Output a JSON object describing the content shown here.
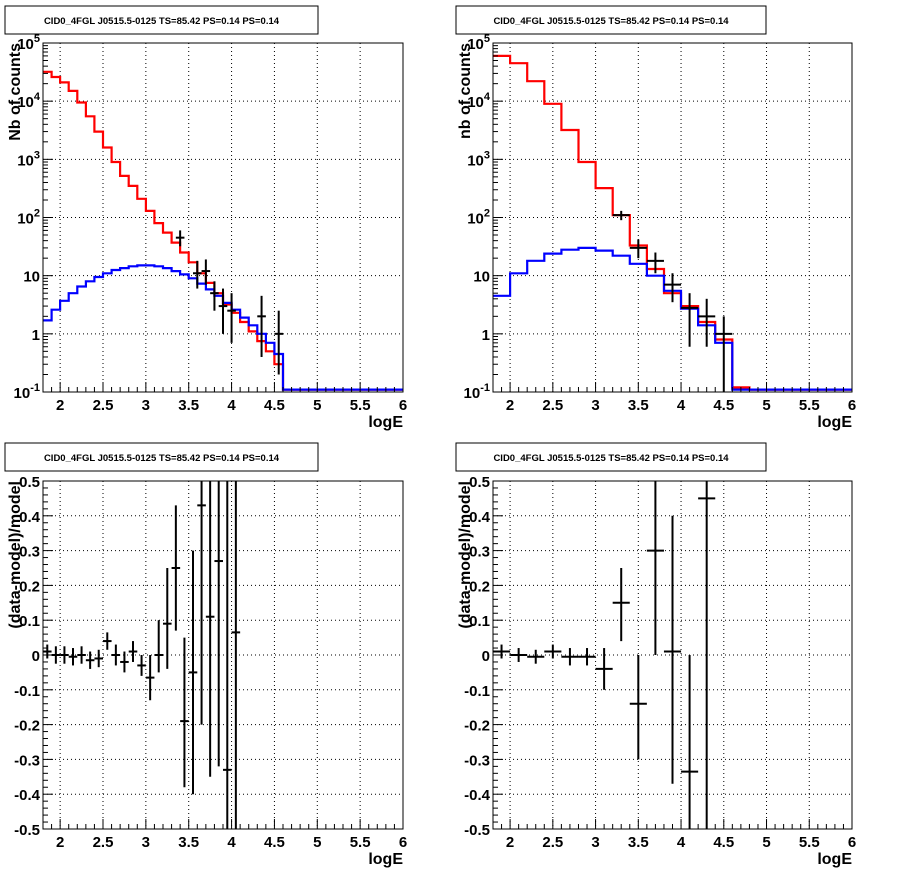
{
  "chart_data": [
    {
      "type": "line",
      "title": "CID0_4FGL J0515.5-0125 TS=85.42 PS=0.14 PS=0.14",
      "xlabel": "logE",
      "ylabel": "Nb of counts",
      "xlim": [
        1.8,
        6
      ],
      "ylim": [
        0.1,
        100000
      ],
      "yscale": "log",
      "xticks": [
        "2",
        "2.5",
        "3",
        "3.5",
        "4",
        "4.5",
        "5",
        "5.5",
        "6"
      ],
      "yticks": [
        "10^-1",
        "1",
        "10",
        "10^2",
        "10^3",
        "10^4",
        "10^5"
      ],
      "grid": true,
      "series": [
        {
          "kind": "step",
          "color": "#ff0000",
          "edges": [
            1.8,
            1.9,
            2.0,
            2.1,
            2.2,
            2.3,
            2.4,
            2.5,
            2.6,
            2.7,
            2.8,
            2.9,
            3.0,
            3.1,
            3.2,
            3.3,
            3.4,
            3.5,
            3.6,
            3.7,
            3.8,
            3.9,
            4.0,
            4.1,
            4.2,
            4.3,
            4.4,
            4.5,
            4.6,
            4.7,
            4.8,
            4.9,
            5.0,
            5.1,
            5.2,
            5.3,
            5.4,
            5.5,
            5.6,
            5.7,
            5.8,
            5.9,
            6.0
          ],
          "values": [
            32000,
            26000,
            21000,
            15000,
            9500,
            5500,
            3000,
            1600,
            900,
            520,
            350,
            210,
            130,
            80,
            55,
            37,
            25,
            17,
            11,
            7.5,
            5,
            3.2,
            2.3,
            1.6,
            1.1,
            0.75,
            0.5,
            0.3,
            0.11,
            0.11,
            0.11,
            0.11,
            0.11,
            0.11,
            0.11,
            0.11,
            0.11,
            0.11,
            0.11,
            0.11,
            0.11,
            0.11
          ]
        },
        {
          "kind": "step",
          "color": "#0000ff",
          "edges": [
            1.8,
            1.9,
            2.0,
            2.1,
            2.2,
            2.3,
            2.4,
            2.5,
            2.6,
            2.7,
            2.8,
            2.9,
            3.0,
            3.1,
            3.2,
            3.3,
            3.4,
            3.5,
            3.6,
            3.7,
            3.8,
            3.9,
            4.0,
            4.1,
            4.2,
            4.3,
            4.4,
            4.5,
            4.6,
            4.7,
            4.8,
            4.9,
            5.0,
            5.1,
            5.2,
            5.3,
            5.4,
            5.5,
            5.6,
            5.7,
            5.8,
            5.9,
            6.0
          ],
          "values": [
            1.7,
            2.6,
            3.7,
            5.0,
            6.5,
            8.0,
            9.5,
            11,
            12.5,
            13.5,
            14.5,
            15,
            15,
            14.5,
            13.5,
            12,
            10.5,
            9,
            7.3,
            5.8,
            4.5,
            3.4,
            2.6,
            1.9,
            1.4,
            1.0,
            0.7,
            0.45,
            0.11,
            0.11,
            0.11,
            0.11,
            0.11,
            0.11,
            0.11,
            0.11,
            0.11,
            0.11,
            0.11,
            0.11,
            0.11,
            0.11
          ]
        },
        {
          "kind": "points",
          "color": "#000000",
          "x": [
            3.4,
            3.6,
            3.7,
            3.8,
            3.9,
            4.0,
            4.35,
            4.55
          ],
          "y": [
            45,
            11,
            12,
            5,
            3,
            2.5,
            2.0,
            1.0
          ],
          "lo": [
            32,
            6,
            7,
            2.5,
            1,
            0.7,
            0.4,
            0.2
          ],
          "hi": [
            60,
            18,
            19,
            8,
            6,
            5,
            4.5,
            2.5
          ],
          "dx": 0.05
        }
      ]
    },
    {
      "type": "line",
      "title": "CID0_4FGL J0515.5-0125 TS=85.42 PS=0.14 PS=0.14",
      "xlabel": "logE",
      "ylabel": "nb of counts",
      "xlim": [
        1.8,
        6
      ],
      "ylim": [
        0.1,
        100000
      ],
      "yscale": "log",
      "xticks": [
        "2",
        "2.5",
        "3",
        "3.5",
        "4",
        "4.5",
        "5",
        "5.5",
        "6"
      ],
      "yticks": [
        "10^-1",
        "1",
        "10",
        "10^2",
        "10^3",
        "10^4",
        "10^5"
      ],
      "grid": true,
      "series": [
        {
          "kind": "step",
          "color": "#ff0000",
          "edges": [
            1.8,
            2.0,
            2.2,
            2.4,
            2.6,
            2.8,
            3.0,
            3.2,
            3.4,
            3.6,
            3.8,
            4.0,
            4.2,
            4.4,
            4.6,
            4.8,
            5.0,
            5.2,
            5.4,
            5.6,
            5.8,
            6.0
          ],
          "values": [
            60000,
            45000,
            22000,
            9000,
            3200,
            900,
            320,
            110,
            33,
            13,
            5,
            3,
            1.6,
            0.8,
            0.12,
            0.11,
            0.11,
            0.11,
            0.11,
            0.11,
            0.11
          ]
        },
        {
          "kind": "step",
          "color": "#0000ff",
          "edges": [
            1.8,
            2.0,
            2.2,
            2.4,
            2.6,
            2.8,
            3.0,
            3.2,
            3.4,
            3.6,
            3.8,
            4.0,
            4.2,
            4.4,
            4.6,
            4.8,
            5.0,
            5.2,
            5.4,
            5.6,
            5.8,
            6.0
          ],
          "values": [
            4.5,
            11,
            18,
            24,
            28,
            30,
            27,
            22,
            16,
            10,
            5.5,
            2.7,
            1.4,
            0.7,
            0.11,
            0.11,
            0.11,
            0.11,
            0.11,
            0.11,
            0.11
          ]
        },
        {
          "kind": "points",
          "color": "#000000",
          "x": [
            3.3,
            3.5,
            3.7,
            3.9,
            4.1,
            4.3,
            4.5
          ],
          "y": [
            110,
            30,
            18,
            7,
            2.8,
            2.0,
            1.0
          ],
          "lo": [
            90,
            20,
            11,
            3.5,
            0.6,
            0.6,
            0.1
          ],
          "hi": [
            130,
            42,
            25,
            11,
            5,
            4,
            2.0
          ],
          "dx": 0.1
        }
      ]
    },
    {
      "type": "scatter",
      "title": "CID0_4FGL J0515.5-0125 TS=85.42 PS=0.14 PS=0.14",
      "xlabel": "logE",
      "ylabel": "(data-model)/model",
      "xlim": [
        1.8,
        6
      ],
      "ylim": [
        -0.5,
        0.5
      ],
      "xticks": [
        "2",
        "2.5",
        "3",
        "3.5",
        "4",
        "4.5",
        "5",
        "5.5",
        "6"
      ],
      "yticks": [
        "-0.5",
        "-0.4",
        "-0.3",
        "-0.2",
        "-0.1",
        "0",
        "0.1",
        "0.2",
        "0.3",
        "0.4",
        "0.5"
      ],
      "grid": true,
      "series": [
        {
          "kind": "points",
          "color": "#000000",
          "dx": 0.05,
          "x": [
            1.85,
            1.95,
            2.05,
            2.15,
            2.25,
            2.35,
            2.45,
            2.55,
            2.65,
            2.75,
            2.85,
            2.95,
            3.05,
            3.15,
            3.25,
            3.35,
            3.45,
            3.55,
            3.65,
            3.75,
            3.85,
            3.95,
            4.05
          ],
          "y": [
            0.01,
            0.0,
            0.0,
            -0.005,
            0.0,
            -0.015,
            -0.01,
            0.04,
            0.0,
            -0.02,
            0.01,
            -0.03,
            -0.065,
            0.0,
            0.09,
            0.25,
            -0.19,
            -0.05,
            0.43,
            0.11,
            0.27,
            -0.33,
            0.065
          ],
          "lo": [
            -0.01,
            -0.025,
            -0.025,
            -0.03,
            -0.025,
            -0.04,
            -0.035,
            0.015,
            -0.03,
            -0.05,
            -0.02,
            -0.06,
            -0.13,
            -0.05,
            -0.04,
            0.07,
            -0.38,
            -0.4,
            -0.2,
            -0.35,
            -0.32,
            -0.5,
            -0.5
          ],
          "hi": [
            0.03,
            0.025,
            0.025,
            0.02,
            0.025,
            0.01,
            0.015,
            0.065,
            0.03,
            0.01,
            0.04,
            0.0,
            0.0,
            0.1,
            0.25,
            0.43,
            0.05,
            0.3,
            0.5,
            0.5,
            0.5,
            0.5,
            0.5
          ]
        }
      ]
    },
    {
      "type": "scatter",
      "title": "CID0_4FGL J0515.5-0125 TS=85.42 PS=0.14 PS=0.14",
      "xlabel": "logE",
      "ylabel": "(data-model)/model",
      "xlim": [
        1.8,
        6
      ],
      "ylim": [
        -0.5,
        0.5
      ],
      "xticks": [
        "2",
        "2.5",
        "3",
        "3.5",
        "4",
        "4.5",
        "5",
        "5.5",
        "6"
      ],
      "yticks": [
        "-0.5",
        "-0.4",
        "-0.3",
        "-0.2",
        "-0.1",
        "0",
        "0.1",
        "0.2",
        "0.3",
        "0.4",
        "0.5"
      ],
      "grid": true,
      "series": [
        {
          "kind": "points",
          "color": "#000000",
          "dx": 0.1,
          "x": [
            1.9,
            2.1,
            2.3,
            2.5,
            2.7,
            2.9,
            3.1,
            3.3,
            3.5,
            3.7,
            3.9,
            4.1,
            4.3
          ],
          "y": [
            0.01,
            0.0,
            -0.005,
            0.01,
            -0.005,
            -0.005,
            -0.04,
            0.15,
            -0.14,
            0.3,
            0.01,
            -0.335,
            0.45
          ],
          "lo": [
            -0.01,
            -0.02,
            -0.025,
            -0.01,
            -0.03,
            -0.03,
            -0.1,
            0.04,
            -0.3,
            0.0,
            -0.37,
            -0.5,
            -0.5
          ],
          "hi": [
            0.03,
            0.02,
            0.015,
            0.03,
            0.02,
            0.02,
            0.02,
            0.25,
            0.0,
            0.5,
            0.4,
            0.0,
            0.5
          ]
        }
      ]
    }
  ]
}
